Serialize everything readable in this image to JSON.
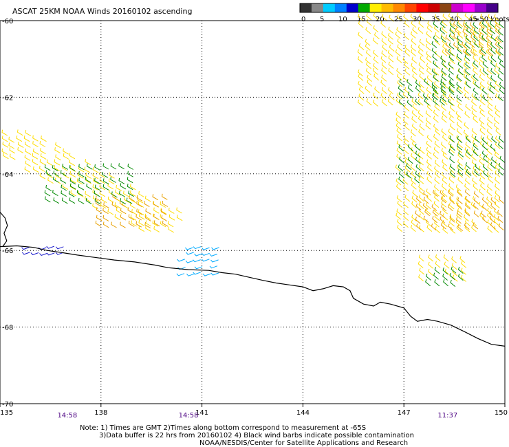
{
  "chart_data": {
    "type": "wind-barb-map",
    "title": "ASCAT 25KM NOAA Winds 20160102 ascending",
    "x_range": [
      135,
      150
    ],
    "y_range": [
      -70,
      -60
    ],
    "x_ticks": [
      "135",
      "138",
      "141",
      "144",
      "147",
      "150"
    ],
    "y_ticks": [
      "-60",
      "-62",
      "-64",
      "-66",
      "-68",
      "-70"
    ],
    "grid": true,
    "colorbar": {
      "ticks": [
        "0",
        "5",
        "10",
        "15",
        "20",
        "25",
        "30",
        "35",
        "40",
        "45",
        ">50 knots"
      ],
      "colors": [
        "#333333",
        "#888888",
        "#00ccff",
        "#0080ff",
        "#0000cc",
        "#00aa00",
        "#ffee00",
        "#ffbb00",
        "#ff8800",
        "#ff4400",
        "#ff0000",
        "#cc0000",
        "#8b4513",
        "#cc00cc",
        "#ff00ff",
        "#9900cc",
        "#440088"
      ]
    },
    "swath_times": [
      {
        "lon": 137.0,
        "label": "14:58"
      },
      {
        "lon": 140.6,
        "label": "14:58"
      },
      {
        "lon": 148.3,
        "label": "11:37"
      }
    ],
    "coastline": [
      [
        135.0,
        -65.9
      ],
      [
        135.5,
        -65.88
      ],
      [
        136.0,
        -65.92
      ],
      [
        136.4,
        -66.0
      ],
      [
        136.8,
        -66.05
      ],
      [
        137.3,
        -66.12
      ],
      [
        137.8,
        -66.18
      ],
      [
        138.4,
        -66.25
      ],
      [
        139.0,
        -66.3
      ],
      [
        139.6,
        -66.38
      ],
      [
        140.0,
        -66.45
      ],
      [
        140.6,
        -66.5
      ],
      [
        141.2,
        -66.52
      ],
      [
        141.6,
        -66.58
      ],
      [
        142.0,
        -66.62
      ],
      [
        142.4,
        -66.7
      ],
      [
        142.8,
        -66.78
      ],
      [
        143.2,
        -66.85
      ],
      [
        143.6,
        -66.9
      ],
      [
        144.0,
        -66.95
      ],
      [
        144.3,
        -67.05
      ],
      [
        144.6,
        -67.0
      ],
      [
        144.9,
        -66.92
      ],
      [
        145.2,
        -66.95
      ],
      [
        145.4,
        -67.05
      ],
      [
        145.5,
        -67.25
      ],
      [
        145.8,
        -67.4
      ],
      [
        146.1,
        -67.45
      ],
      [
        146.3,
        -67.35
      ],
      [
        146.6,
        -67.4
      ],
      [
        147.0,
        -67.5
      ],
      [
        147.2,
        -67.72
      ],
      [
        147.4,
        -67.85
      ],
      [
        147.7,
        -67.8
      ],
      [
        148.0,
        -67.85
      ],
      [
        148.4,
        -67.95
      ],
      [
        148.8,
        -68.12
      ],
      [
        149.2,
        -68.3
      ],
      [
        149.6,
        -68.45
      ],
      [
        150.0,
        -68.5
      ]
    ],
    "coastline_island": [
      [
        135.0,
        -65.0
      ],
      [
        135.15,
        -65.15
      ],
      [
        135.22,
        -65.35
      ],
      [
        135.12,
        -65.55
      ],
      [
        135.2,
        -65.75
      ],
      [
        135.08,
        -65.9
      ]
    ],
    "wind_regions": [
      {
        "lon": [
          135.0,
          140.5
        ],
        "lat": [
          -63.0,
          -65.6
        ],
        "direction_deg": 150,
        "speed_knots": 25,
        "shape": "band"
      },
      {
        "lon": [
          136.5,
          139.0
        ],
        "lat": [
          -63.9,
          -64.9
        ],
        "direction_deg": 150,
        "speed_knots": 20,
        "shape": "patch"
      },
      {
        "lon": [
          138.0,
          140.0
        ],
        "lat": [
          -64.7,
          -65.4
        ],
        "direction_deg": 150,
        "speed_knots": 30,
        "shape": "patch"
      },
      {
        "lon": [
          135.9,
          136.9
        ],
        "lat": [
          -65.9,
          -66.1
        ],
        "direction_deg": 200,
        "speed_knots": 15,
        "shape": "patch"
      },
      {
        "lon": [
          140.5,
          141.7
        ],
        "lat": [
          -65.9,
          -66.7
        ],
        "direction_deg": 200,
        "speed_knots": 10,
        "shape": "patch"
      },
      {
        "lon": [
          145.8,
          150.0
        ],
        "lat": [
          -60.0,
          -65.6
        ],
        "direction_deg": 140,
        "speed_knots": 25,
        "shape": "swath"
      },
      {
        "lon": [
          148.0,
          150.0
        ],
        "lat": [
          -60.2,
          -62.2
        ],
        "direction_deg": 140,
        "speed_knots": 20,
        "shape": "patch"
      },
      {
        "lon": [
          147.0,
          148.5
        ],
        "lat": [
          -61.7,
          -62.3
        ],
        "direction_deg": 140,
        "speed_knots": 20,
        "shape": "patch"
      },
      {
        "lon": [
          147.0,
          147.6
        ],
        "lat": [
          -63.4,
          -64.4
        ],
        "direction_deg": 140,
        "speed_knots": 20,
        "shape": "patch"
      },
      {
        "lon": [
          148.5,
          150.0
        ],
        "lat": [
          -63.2,
          -64.2
        ],
        "direction_deg": 140,
        "speed_knots": 20,
        "shape": "patch"
      },
      {
        "lon": [
          147.5,
          150.0
        ],
        "lat": [
          -64.6,
          -65.5
        ],
        "direction_deg": 140,
        "speed_knots": 30,
        "shape": "patch"
      },
      {
        "lon": [
          148.4,
          150.0
        ],
        "lat": [
          -60.2,
          -60.9
        ],
        "direction_deg": 140,
        "speed_knots": 30,
        "shape": "patch"
      },
      {
        "lon": [
          147.6,
          149.0
        ],
        "lat": [
          -66.3,
          -66.9
        ],
        "direction_deg": 140,
        "speed_knots": 25,
        "shape": "patch"
      },
      {
        "lon": [
          147.8,
          149.0
        ],
        "lat": [
          -66.6,
          -67.0
        ],
        "direction_deg": 140,
        "speed_knots": 20,
        "shape": "patch"
      }
    ]
  },
  "note": {
    "line1": "Note: 1) Times are GMT 2)Times along bottom correspond to measurement at -65S",
    "line2": "3)Data buffer is 22 hrs from 20160102 4) Black wind barbs indicate possible contamination",
    "line3": "NOAA/NESDIS/Center for Satellite Applications and Research"
  }
}
